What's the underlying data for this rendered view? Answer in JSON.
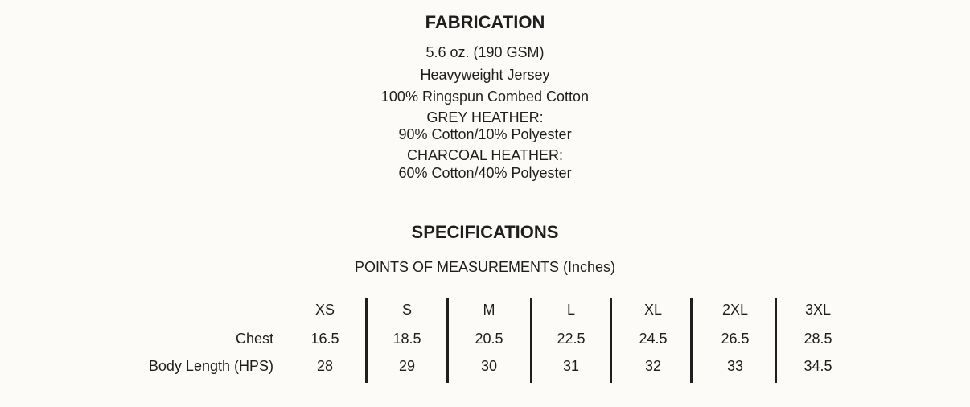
{
  "fabrication": {
    "title": "FABRICATION",
    "lines": [
      "5.6 oz. (190 GSM)",
      "Heavyweight Jersey",
      "100% Ringspun Combed Cotton",
      "GREY HEATHER:",
      "90% Cotton/10% Polyester",
      "CHARCOAL HEATHER:",
      "60% Cotton/40% Polyester"
    ]
  },
  "specifications": {
    "title": "SPECIFICATIONS",
    "subtitle": "POINTS OF MEASUREMENTS (Inches)",
    "sizes": [
      "XS",
      "S",
      "M",
      "L",
      "XL",
      "2XL",
      "3XL"
    ],
    "rows": [
      {
        "label": "Chest",
        "values": [
          "16.5",
          "18.5",
          "20.5",
          "22.5",
          "24.5",
          "26.5",
          "28.5"
        ]
      },
      {
        "label": "Body Length (HPS)",
        "values": [
          "28",
          "29",
          "30",
          "31",
          "32",
          "33",
          "34.5"
        ]
      }
    ]
  }
}
